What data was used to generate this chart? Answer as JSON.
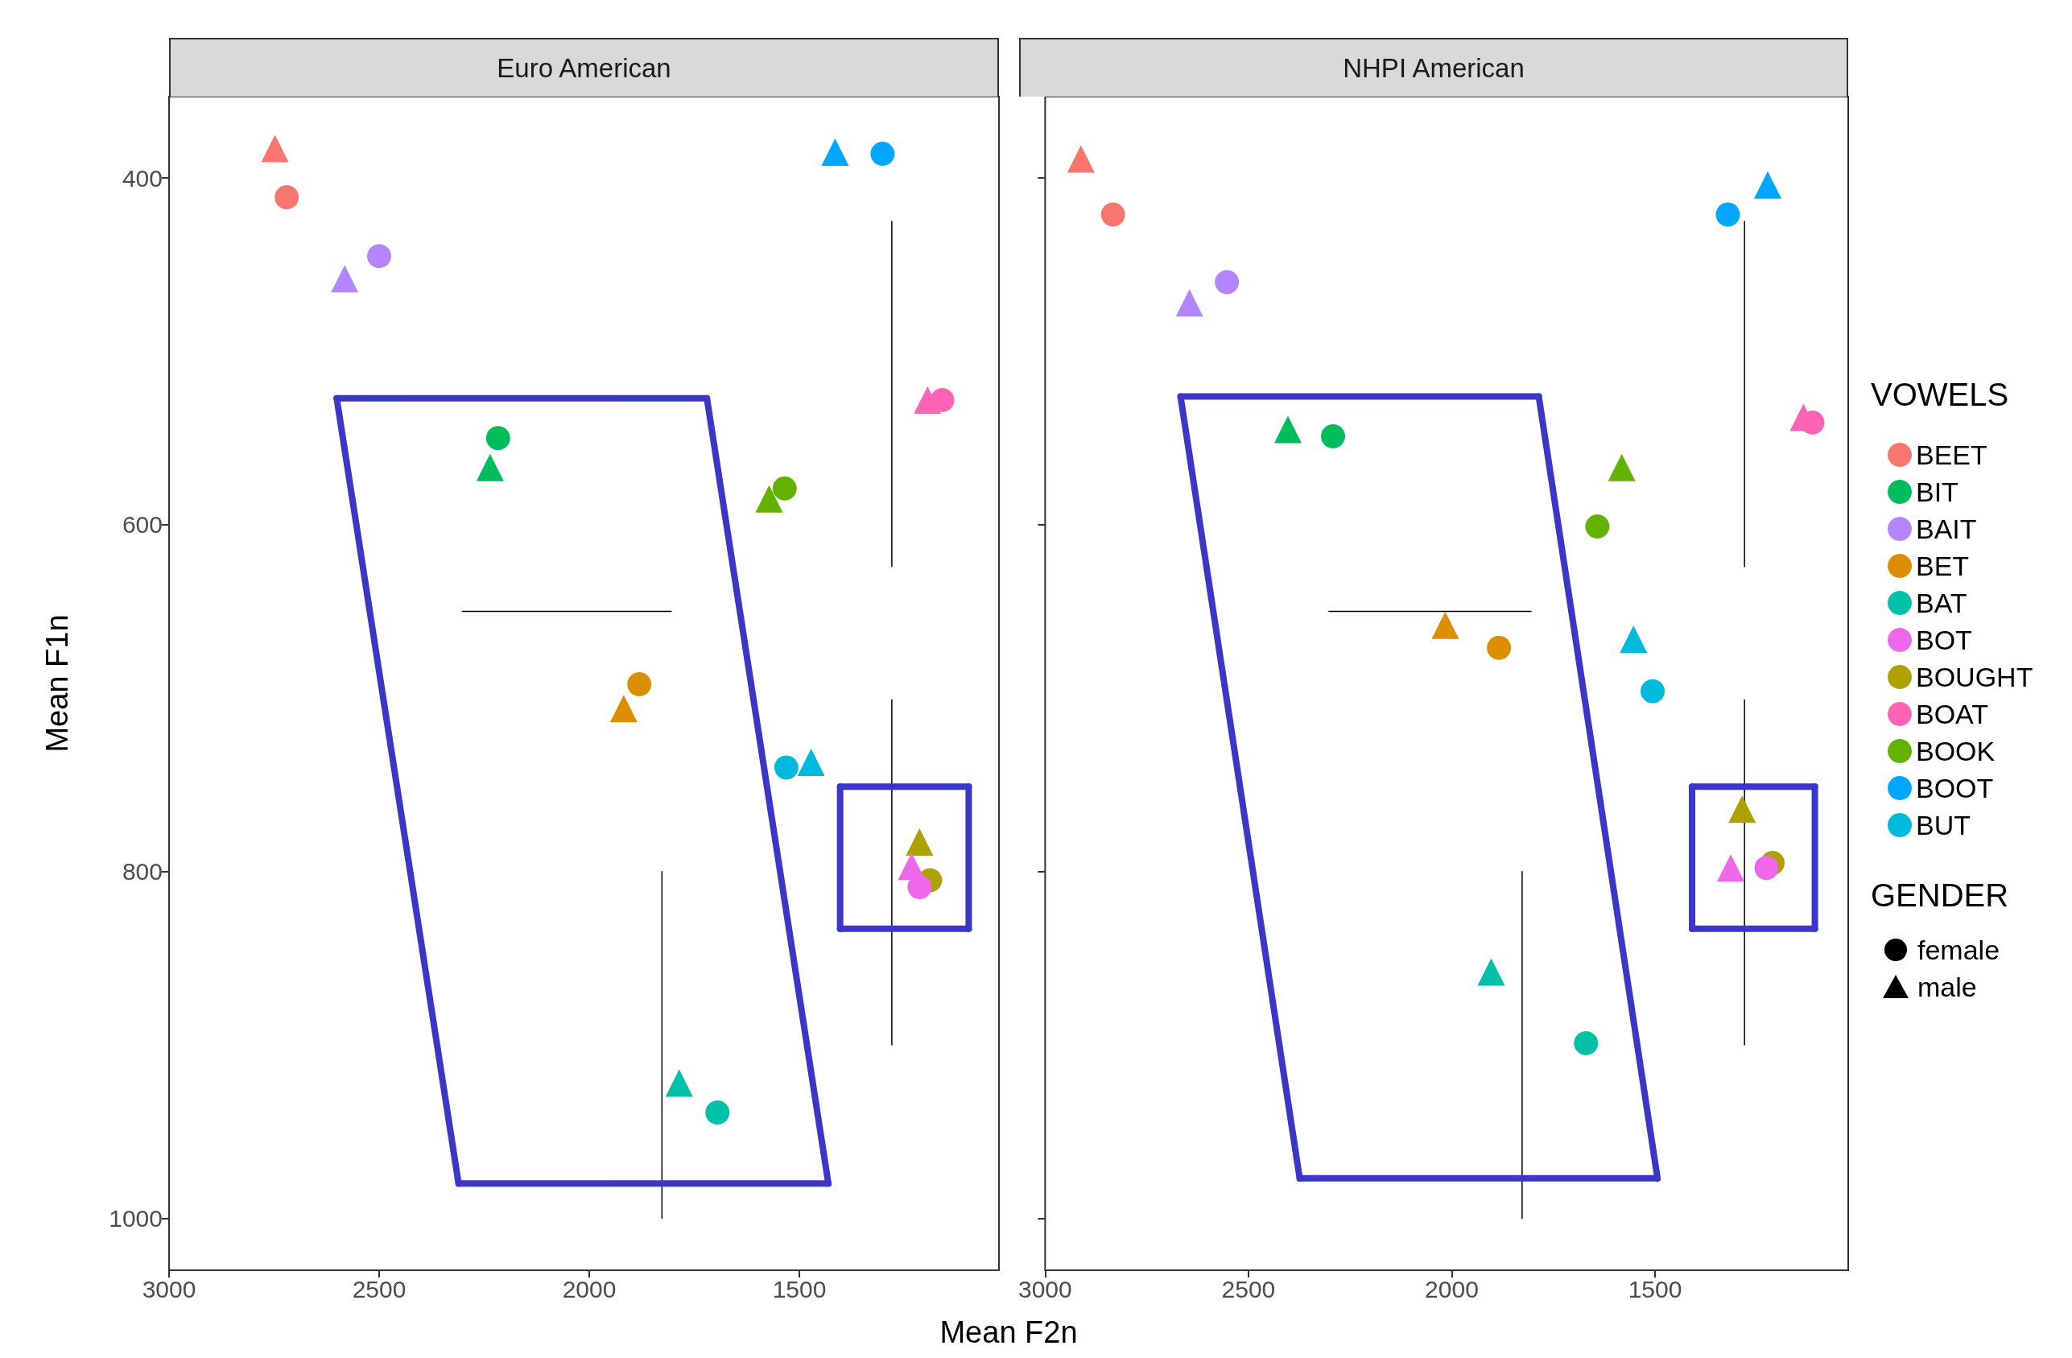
{
  "chart_data": [
    {
      "type": "scatter",
      "title": "Euro American",
      "xlabel": "Mean F2n",
      "ylabel": "Mean F1n",
      "xlim": [
        3000,
        1025
      ],
      "ylim": [
        1030,
        353
      ],
      "xticks": [
        3000,
        2500,
        2000,
        1500
      ],
      "yticks": [
        400,
        600,
        800,
        1000
      ],
      "grid": false,
      "legend": false,
      "series": [
        {
          "type": "line",
          "color": "#000000",
          "x": [
            1280,
            1280
          ],
          "values": [
            425,
            624
          ]
        },
        {
          "type": "line",
          "color": "#000000",
          "x": [
            1280,
            1280
          ],
          "values": [
            701,
            900
          ]
        },
        {
          "type": "line",
          "color": "#000000",
          "x": [
            1827,
            1827
          ],
          "values": [
            800,
            1000
          ]
        },
        {
          "type": "line",
          "color": "#000000",
          "x": [
            2302,
            1805
          ],
          "values": [
            650,
            650
          ]
        },
        {
          "type": "line",
          "color": "#3b36c8",
          "x": [
            2601,
            1720
          ],
          "values": [
            527,
            527
          ]
        },
        {
          "type": "line",
          "color": "#3b36c8",
          "x": [
            1720,
            1431
          ],
          "values": [
            527,
            980
          ]
        },
        {
          "type": "line",
          "color": "#3b36c8",
          "x": [
            1431,
            2311
          ],
          "values": [
            980,
            980
          ]
        },
        {
          "type": "line",
          "color": "#3b36c8",
          "x": [
            2311,
            2601
          ],
          "values": [
            980,
            527
          ]
        },
        {
          "type": "line",
          "color": "#3b36c8",
          "x": [
            1403,
            1097
          ],
          "values": [
            751,
            751
          ]
        },
        {
          "type": "line",
          "color": "#3b36c8",
          "x": [
            1097,
            1097
          ],
          "values": [
            751,
            833
          ]
        },
        {
          "type": "line",
          "color": "#3b36c8",
          "x": [
            1097,
            1403
          ],
          "values": [
            833,
            833
          ]
        },
        {
          "type": "line",
          "color": "#3b36c8",
          "x": [
            1403,
            1403
          ],
          "values": [
            833,
            751
          ]
        },
        {
          "color": "#f8766d",
          "marker": "circle",
          "x": [
            2720
          ],
          "values": [
            411
          ]
        },
        {
          "color": "#f8766d",
          "marker": "triangle",
          "x": [
            2748
          ],
          "values": [
            383
          ]
        },
        {
          "color": "#00bd5c",
          "marker": "circle",
          "x": [
            2217
          ],
          "values": [
            550
          ]
        },
        {
          "color": "#00bd5c",
          "marker": "triangle",
          "x": [
            2236
          ],
          "values": [
            567
          ]
        },
        {
          "color": "#b385ff",
          "marker": "circle",
          "x": [
            2500
          ],
          "values": [
            445
          ]
        },
        {
          "color": "#b385ff",
          "marker": "triangle",
          "x": [
            2582
          ],
          "values": [
            458
          ]
        },
        {
          "color": "#db8e00",
          "marker": "circle",
          "x": [
            1881
          ],
          "values": [
            692
          ]
        },
        {
          "color": "#db8e00",
          "marker": "triangle",
          "x": [
            1918
          ],
          "values": [
            706
          ]
        },
        {
          "color": "#00c1a7",
          "marker": "circle",
          "x": [
            1695
          ],
          "values": [
            939
          ]
        },
        {
          "color": "#00c1a7",
          "marker": "triangle",
          "x": [
            1786
          ],
          "values": [
            922
          ]
        },
        {
          "color": "#ef67eb",
          "marker": "circle",
          "x": [
            1214
          ],
          "values": [
            809
          ]
        },
        {
          "color": "#ef67eb",
          "marker": "triangle",
          "x": [
            1233
          ],
          "values": [
            797
          ]
        },
        {
          "color": "#aea200",
          "marker": "circle",
          "x": [
            1189
          ],
          "values": [
            805
          ]
        },
        {
          "color": "#aea200",
          "marker": "triangle",
          "x": [
            1214
          ],
          "values": [
            783
          ]
        },
        {
          "color": "#ff63b6",
          "marker": "circle",
          "x": [
            1160
          ],
          "values": [
            528
          ]
        },
        {
          "color": "#ff63b6",
          "marker": "triangle",
          "x": [
            1195
          ],
          "values": [
            528
          ]
        },
        {
          "color": "#64b200",
          "marker": "circle",
          "x": [
            1535
          ],
          "values": [
            579
          ]
        },
        {
          "color": "#64b200",
          "marker": "triangle",
          "x": [
            1572
          ],
          "values": [
            585
          ]
        },
        {
          "color": "#00a6ff",
          "marker": "circle",
          "x": [
            1302
          ],
          "values": [
            386
          ]
        },
        {
          "color": "#00a6ff",
          "marker": "triangle",
          "x": [
            1415
          ],
          "values": [
            385
          ]
        },
        {
          "color": "#00bade",
          "marker": "circle",
          "x": [
            1531
          ],
          "values": [
            740
          ]
        },
        {
          "color": "#00bade",
          "marker": "triangle",
          "x": [
            1472
          ],
          "values": [
            737
          ]
        }
      ]
    },
    {
      "type": "scatter",
      "title": "NHPI American",
      "xlim": [
        3000,
        1025
      ],
      "ylim": [
        1030,
        353
      ],
      "xticks": [
        3000,
        2500,
        2000,
        1500
      ],
      "yticks": [
        400,
        600,
        800,
        1000
      ],
      "tick_labels": "x",
      "grid": false,
      "legend": "right",
      "legend_title": "VOWELS",
      "annotations": [
        "GENDER",
        "female",
        "male"
      ],
      "series": [
        {
          "type": "line",
          "color": "#000000",
          "x": [
            1280,
            1280
          ],
          "values": [
            425,
            624
          ]
        },
        {
          "type": "line",
          "color": "#000000",
          "x": [
            1280,
            1280
          ],
          "values": [
            701,
            900
          ]
        },
        {
          "type": "line",
          "color": "#000000",
          "x": [
            1827,
            1827
          ],
          "values": [
            800,
            1000
          ]
        },
        {
          "type": "line",
          "color": "#000000",
          "x": [
            2302,
            1805
          ],
          "values": [
            650,
            650
          ]
        },
        {
          "type": "line",
          "color": "#3b36c8",
          "x": [
            2667,
            1786
          ],
          "values": [
            526,
            526
          ]
        },
        {
          "type": "line",
          "color": "#3b36c8",
          "x": [
            1786,
            1494
          ],
          "values": [
            526,
            977
          ]
        },
        {
          "type": "line",
          "color": "#3b36c8",
          "x": [
            1494,
            2374
          ],
          "values": [
            977,
            977
          ]
        },
        {
          "type": "line",
          "color": "#3b36c8",
          "x": [
            2374,
            2667
          ],
          "values": [
            977,
            526
          ]
        },
        {
          "type": "line",
          "color": "#3b36c8",
          "x": [
            1409,
            1107
          ],
          "values": [
            751,
            751
          ]
        },
        {
          "type": "line",
          "color": "#3b36c8",
          "x": [
            1107,
            1107
          ],
          "values": [
            751,
            833
          ]
        },
        {
          "type": "line",
          "color": "#3b36c8",
          "x": [
            1107,
            1409
          ],
          "values": [
            833,
            833
          ]
        },
        {
          "type": "line",
          "color": "#3b36c8",
          "x": [
            1409,
            1409
          ],
          "values": [
            833,
            751
          ]
        },
        {
          "name": "BEET",
          "color": "#f8766d",
          "marker": "circle",
          "x": [
            2833
          ],
          "values": [
            421
          ]
        },
        {
          "color": "#f8766d",
          "marker": "triangle",
          "x": [
            2912
          ],
          "values": [
            389
          ]
        },
        {
          "name": "BIT",
          "color": "#00bd5c",
          "marker": "circle",
          "x": [
            2292
          ],
          "values": [
            549
          ]
        },
        {
          "color": "#00bd5c",
          "marker": "triangle",
          "x": [
            2403
          ],
          "values": [
            545
          ]
        },
        {
          "name": "BAIT",
          "color": "#b385ff",
          "marker": "circle",
          "x": [
            2553
          ],
          "values": [
            460
          ]
        },
        {
          "color": "#b385ff",
          "marker": "triangle",
          "x": [
            2645
          ],
          "values": [
            472
          ]
        },
        {
          "name": "BET",
          "color": "#db8e00",
          "marker": "circle",
          "x": [
            1884
          ],
          "values": [
            671
          ]
        },
        {
          "color": "#db8e00",
          "marker": "triangle",
          "x": [
            2016
          ],
          "values": [
            658
          ]
        },
        {
          "name": "BAT",
          "color": "#00c1a7",
          "marker": "circle",
          "x": [
            1670
          ],
          "values": [
            899
          ]
        },
        {
          "color": "#00c1a7",
          "marker": "triangle",
          "x": [
            1903
          ],
          "values": [
            858
          ]
        },
        {
          "name": "BOT",
          "color": "#ef67eb",
          "marker": "circle",
          "x": [
            1226
          ],
          "values": [
            798
          ]
        },
        {
          "color": "#ef67eb",
          "marker": "triangle",
          "x": [
            1314
          ],
          "values": [
            798
          ]
        },
        {
          "name": "BOUGHT",
          "color": "#aea200",
          "marker": "circle",
          "x": [
            1211
          ],
          "values": [
            795
          ]
        },
        {
          "color": "#aea200",
          "marker": "triangle",
          "x": [
            1286
          ],
          "values": [
            764
          ]
        },
        {
          "name": "BOAT",
          "color": "#ff63b6",
          "marker": "circle",
          "x": [
            1113
          ],
          "values": [
            541
          ]
        },
        {
          "color": "#ff63b6",
          "marker": "triangle",
          "x": [
            1135
          ],
          "values": [
            538
          ]
        },
        {
          "name": "BOOK",
          "color": "#64b200",
          "marker": "circle",
          "x": [
            1642
          ],
          "values": [
            601
          ]
        },
        {
          "color": "#64b200",
          "marker": "triangle",
          "x": [
            1582
          ],
          "values": [
            567
          ]
        },
        {
          "name": "BOOT",
          "color": "#00a6ff",
          "marker": "circle",
          "x": [
            1321
          ],
          "values": [
            421
          ]
        },
        {
          "color": "#00a6ff",
          "marker": "triangle",
          "x": [
            1223
          ],
          "values": [
            404
          ]
        },
        {
          "name": "BUT",
          "color": "#00bade",
          "marker": "circle",
          "x": [
            1506
          ],
          "values": [
            696
          ]
        },
        {
          "color": "#00bade",
          "marker": "triangle",
          "x": [
            1553
          ],
          "values": [
            666
          ]
        }
      ]
    }
  ]
}
